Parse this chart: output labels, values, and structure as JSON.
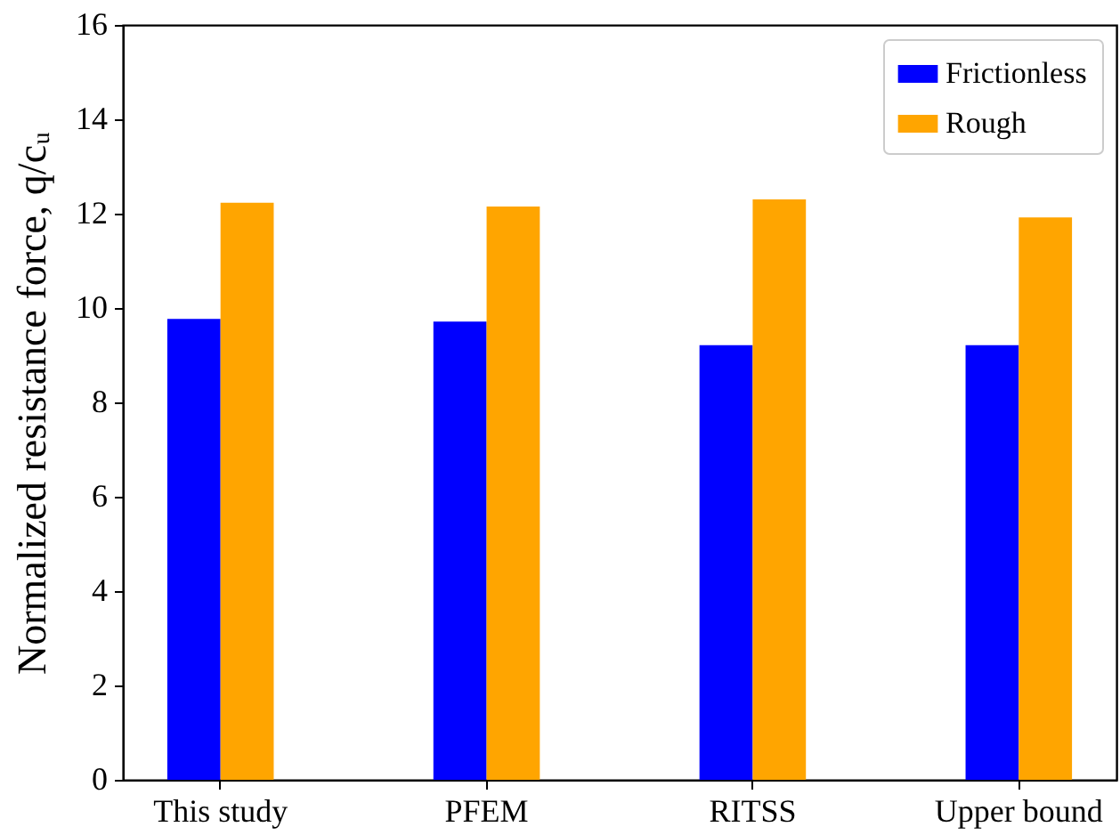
{
  "chart_data": {
    "type": "bar",
    "ylabel": "Normalized resistance force, q/cᵤ",
    "categories": [
      "This study",
      "PFEM",
      "RITSS",
      "Upper bound"
    ],
    "series": [
      {
        "name": "Frictionless",
        "color": "#0000ff",
        "values": [
          9.77,
          9.71,
          9.21,
          9.21
        ]
      },
      {
        "name": "Rough",
        "color": "#ffa500",
        "values": [
          12.23,
          12.15,
          12.3,
          11.92
        ]
      }
    ],
    "ylim": [
      0,
      16
    ],
    "yticks": [
      0,
      2,
      4,
      6,
      8,
      10,
      12,
      14,
      16
    ],
    "grid": false,
    "legend": "top right"
  }
}
